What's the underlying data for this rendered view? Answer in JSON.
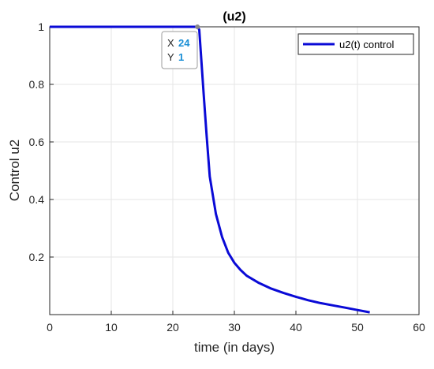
{
  "chart_data": {
    "type": "line",
    "title": "(u2)",
    "xlabel": "time (in days)",
    "ylabel": "Control u2",
    "xlim": [
      0,
      60
    ],
    "ylim": [
      0,
      1
    ],
    "xticks": [
      0,
      10,
      20,
      30,
      40,
      50,
      60
    ],
    "xtick_labels": [
      "0",
      "10",
      "20",
      "30",
      "40",
      "50",
      "60"
    ],
    "yticks": [
      0.2,
      0.4,
      0.6,
      0.8,
      1
    ],
    "ytick_labels": [
      "0.2",
      "0.4",
      "0.6",
      "0.8",
      "1"
    ],
    "grid": true,
    "legend_position": "top-right",
    "series": [
      {
        "name": "u2(t) control",
        "color": "#0a0ad6",
        "x": [
          0,
          24,
          24.3,
          25,
          25.5,
          26,
          27,
          28,
          29,
          30,
          31,
          32,
          34,
          36,
          38,
          40,
          42,
          44,
          46,
          48,
          50,
          52
        ],
        "y": [
          1,
          1,
          0.99,
          0.77,
          0.62,
          0.48,
          0.35,
          0.27,
          0.215,
          0.18,
          0.155,
          0.135,
          0.11,
          0.09,
          0.075,
          0.062,
          0.05,
          0.04,
          0.032,
          0.024,
          0.016,
          0.008
        ]
      }
    ],
    "datatip": {
      "x_label": "X",
      "x_value": "24",
      "y_label": "Y",
      "y_value": "1",
      "point": [
        24,
        1
      ]
    }
  }
}
